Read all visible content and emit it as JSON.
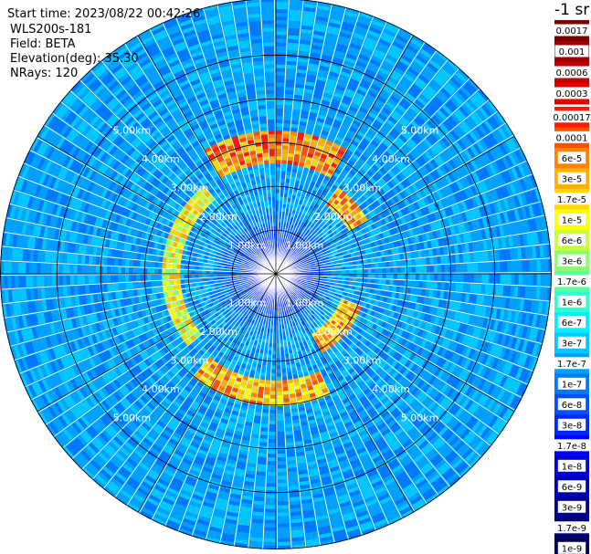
{
  "header": {
    "start_time": "Start time: 2023/08/22 00:42:26",
    "instrument": "WLS200s-181",
    "field": "Field: BETA",
    "elevation": "Elevation(deg): 35.30",
    "nrays": "NRays: 120"
  },
  "colorbar": {
    "unit": "-1 sr",
    "levels": [
      "0.0017",
      "0.001",
      "0.0006",
      "0.0003",
      "0.00017",
      "0.0001",
      "6e-5",
      "3e-5",
      "1.7e-5",
      "1e-5",
      "6e-6",
      "3e-6",
      "1.7e-6",
      "1e-6",
      "6e-7",
      "3e-7",
      "1.7e-7",
      "1e-7",
      "6e-8",
      "3e-8",
      "1.7e-8",
      "1e-8",
      "6e-9",
      "3e-9",
      "1.7e-9",
      "1e-9"
    ],
    "colors": [
      "#7a0000",
      "#9e0000",
      "#c40000",
      "#e00000",
      "#ff1a00",
      "#ff5000",
      "#ff8200",
      "#ffb000",
      "#ffd800",
      "#ffff00",
      "#c8ff36",
      "#8cff6e",
      "#5affa0",
      "#2effd2",
      "#00f0ff",
      "#00c8ff",
      "#00a0ff",
      "#0078ff",
      "#0050ff",
      "#0028ff",
      "#0000ff",
      "#0000d8",
      "#0000b4",
      "#000090",
      "#000070",
      "#000050"
    ]
  },
  "chart_data": {
    "type": "heatmap",
    "projection": "polar (PPI scan)",
    "field": "BETA",
    "unit": "-1 sr",
    "nrays": 120,
    "elevation_deg": 35.3,
    "range_rings_km": [
      1.0,
      2.0,
      3.0,
      4.0,
      5.0
    ],
    "range_labels": [
      "1.00km",
      "2.00km",
      "3.00km",
      "4.00km",
      "5.00km"
    ],
    "max_range_km": 6.3,
    "color_scale": "log",
    "background_level": "1.7e-7",
    "near_center_level": "1e-8",
    "features": [
      {
        "region": "aerosol ring W",
        "range_km": [
          2.2,
          2.6
        ],
        "azimuth_deg": [
          230,
          320
        ],
        "level": "1e-5"
      },
      {
        "region": "aerosol arc N",
        "range_km": [
          2.5,
          3.3
        ],
        "azimuth_deg": [
          330,
          30
        ],
        "level": "6e-5"
      },
      {
        "region": "aerosol arc NE",
        "range_km": [
          1.9,
          2.4
        ],
        "azimuth_deg": [
          35,
          60
        ],
        "level": "3e-5"
      },
      {
        "region": "aerosol arc SE",
        "range_km": [
          1.6,
          2.1
        ],
        "azimuth_deg": [
          110,
          150
        ],
        "level": "3e-5"
      },
      {
        "region": "aerosol arc S",
        "range_km": [
          2.4,
          3.0
        ],
        "azimuth_deg": [
          155,
          220
        ],
        "level": "3e-5"
      }
    ]
  }
}
